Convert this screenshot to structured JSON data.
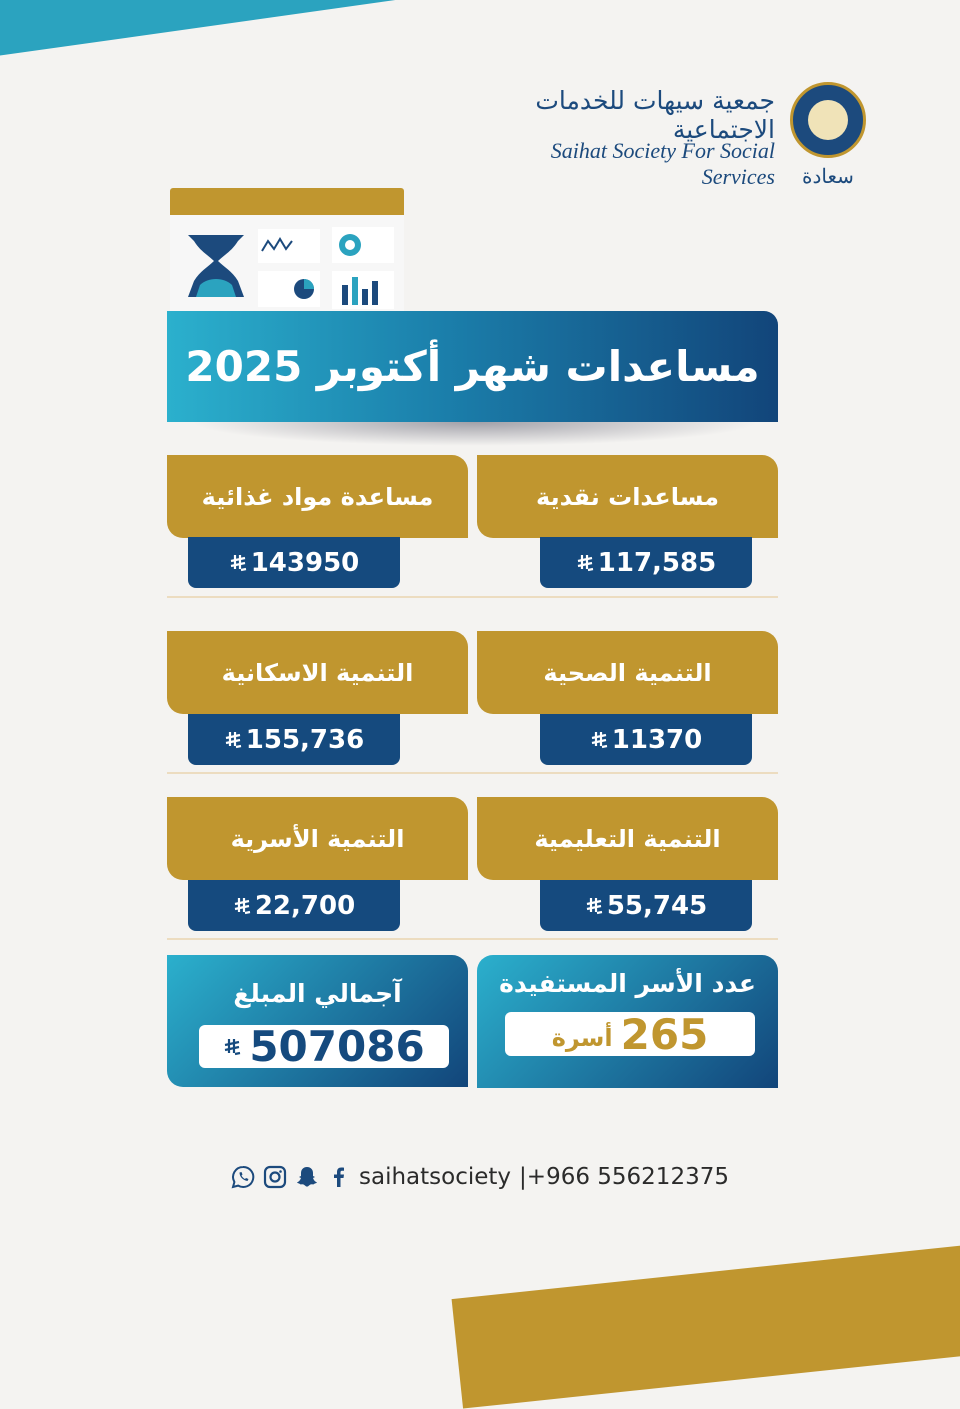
{
  "brand": {
    "name_ar": "جمعية سيهات للخدمات الاجتماعية",
    "name_en": "Saihat Society For Social Services",
    "tagline_ar": "سعادة"
  },
  "title": "مساعدات شهر أكتوبر 2025",
  "currency_icon": "saudi-riyal-icon",
  "categories": [
    {
      "label": "مساعدات نقدية",
      "value": "117,585"
    },
    {
      "label": "مساعدة مواد غذائية",
      "value": "143950"
    },
    {
      "label": "التنمية الصحية",
      "value": "11370"
    },
    {
      "label": "التنمية الاسكانية",
      "value": "155,736"
    },
    {
      "label": "التنمية التعليمية",
      "value": "55,745"
    },
    {
      "label": "التنمية الأسرية",
      "value": "22,700"
    }
  ],
  "total": {
    "label": "آجمالي المبلغ",
    "value": "507086"
  },
  "families": {
    "label": "عدد الأسر المستفيدة",
    "value": "265",
    "unit": "أسرة"
  },
  "footer": {
    "handle": "saihatsociety",
    "phone": "|+966 556212375",
    "icons": [
      "whatsapp-icon",
      "instagram-icon",
      "snapchat-icon",
      "facebook-icon"
    ]
  },
  "colors": {
    "gold": "#c0962f",
    "navy": "#154a7e",
    "teal": "#2bb0cd"
  }
}
